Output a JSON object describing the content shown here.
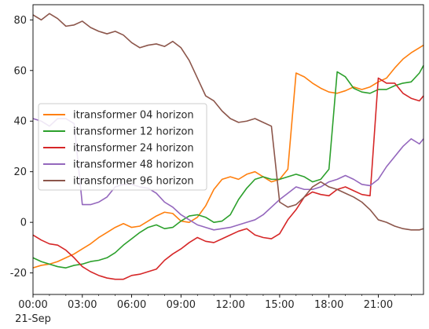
{
  "chart_data": {
    "type": "line",
    "title": "",
    "xlabel": "",
    "ylabel": "",
    "x_ticks": [
      "00:00",
      "03:00",
      "06:00",
      "09:00",
      "12:00",
      "15:00",
      "18:00",
      "21:00"
    ],
    "x_date_label": "21-Sep",
    "y_ticks": [
      -20,
      0,
      20,
      40,
      60,
      80
    ],
    "xlim": [
      0,
      23.75
    ],
    "ylim": [
      -28.5,
      86
    ],
    "grid": false,
    "legend_position": "center-left",
    "series": [
      {
        "name": "itransformer 04 horizon",
        "color": "#ff7f0e",
        "x": [
          0,
          0.5,
          1,
          1.5,
          2,
          2.5,
          3,
          3.5,
          4,
          4.5,
          5,
          5.5,
          6,
          6.5,
          7,
          7.5,
          8,
          8.5,
          9,
          9.5,
          10,
          10.5,
          11,
          11.5,
          12,
          12.5,
          13,
          13.5,
          14,
          14.5,
          15,
          15.5,
          16,
          16.5,
          17,
          17.5,
          18,
          18.5,
          19,
          19.5,
          20,
          20.5,
          21,
          21.5,
          22,
          22.5,
          23,
          23.5,
          23.75
        ],
        "y": [
          -18,
          -17,
          -16.5,
          -15.5,
          -14,
          -12.5,
          -10.5,
          -8.5,
          -6,
          -4,
          -2,
          -0.5,
          -2,
          -1.5,
          0.5,
          2.5,
          4,
          3.5,
          0.5,
          0,
          2,
          6.5,
          13,
          17,
          18,
          17,
          19,
          20,
          18,
          16,
          17,
          21,
          59,
          57.5,
          55,
          53,
          51.5,
          51,
          52,
          53.5,
          52.5,
          53.5,
          55.5,
          57,
          61,
          64.5,
          67,
          69,
          70
        ]
      },
      {
        "name": "itransformer 12 horizon",
        "color": "#2ca02c",
        "x": [
          0,
          0.5,
          1,
          1.5,
          2,
          2.5,
          3,
          3.5,
          4,
          4.5,
          5,
          5.5,
          6,
          6.5,
          7,
          7.5,
          8,
          8.5,
          9,
          9.5,
          10,
          10.5,
          11,
          11.5,
          12,
          12.5,
          13,
          13.5,
          14,
          14.5,
          15,
          15.5,
          16,
          16.5,
          17,
          17.5,
          18,
          18.5,
          19,
          19.5,
          20,
          20.5,
          21,
          21.5,
          22,
          22.5,
          23,
          23.5,
          23.75
        ],
        "y": [
          -14,
          -15.5,
          -16.5,
          -17.5,
          -18,
          -17,
          -16.5,
          -15.5,
          -15,
          -14,
          -12,
          -9,
          -6.5,
          -4,
          -2,
          -1,
          -2.5,
          -2,
          0.5,
          2.5,
          3,
          2,
          0,
          0.5,
          3,
          9,
          13.5,
          17,
          18,
          17,
          17,
          18,
          19,
          18,
          16,
          17,
          21,
          59.5,
          57.5,
          53,
          51.5,
          51,
          52.5,
          52.5,
          54,
          55,
          55.5,
          59,
          62
        ]
      },
      {
        "name": "itransformer 24 horizon",
        "color": "#d62728",
        "x": [
          0,
          0.5,
          1,
          1.5,
          2,
          2.5,
          3,
          3.5,
          4,
          4.5,
          5,
          5.5,
          6,
          6.5,
          7,
          7.5,
          8,
          8.5,
          9,
          9.5,
          10,
          10.5,
          11,
          11.5,
          12,
          12.5,
          13,
          13.5,
          14,
          14.5,
          15,
          15.5,
          16,
          16.5,
          17,
          17.5,
          18,
          18.5,
          19,
          19.5,
          20,
          20.5,
          21,
          21.5,
          22,
          22.5,
          23,
          23.5,
          23.75
        ],
        "y": [
          -5,
          -7,
          -8.5,
          -9,
          -11,
          -14,
          -17.5,
          -19.5,
          -21,
          -22,
          -22.5,
          -22.5,
          -21,
          -20.5,
          -19.5,
          -18.5,
          -15,
          -12.5,
          -10.5,
          -8,
          -6,
          -7.5,
          -8,
          -6.5,
          -5,
          -3.5,
          -2.5,
          -5,
          -6,
          -6.5,
          -4.5,
          1,
          5,
          10,
          12,
          11,
          10.5,
          13,
          14,
          12.5,
          11,
          10.5,
          57,
          55,
          55,
          51,
          49,
          48,
          50
        ]
      },
      {
        "name": "itransformer 48 horizon",
        "color": "#9467bd",
        "x": [
          0,
          0.5,
          1,
          1.5,
          2,
          2.5,
          3,
          3.5,
          4,
          4.5,
          5,
          5.5,
          6,
          6.5,
          7,
          7.5,
          8,
          8.5,
          9,
          9.5,
          10,
          10.5,
          11,
          11.5,
          12,
          12.5,
          13,
          13.5,
          14,
          14.5,
          15,
          15.5,
          16,
          16.5,
          17,
          17.5,
          18,
          18.5,
          19,
          19.5,
          20,
          20.5,
          21,
          21.5,
          22,
          22.5,
          23,
          23.5,
          23.75
        ],
        "y": [
          41,
          40,
          38,
          41,
          41,
          39,
          7,
          7,
          8,
          10,
          14,
          15,
          15,
          14,
          13.5,
          11.5,
          8,
          6,
          3,
          1,
          -1,
          -2,
          -3,
          -2.5,
          -2,
          -1,
          0,
          1,
          3,
          6,
          9,
          11.5,
          14,
          13,
          13,
          14,
          16,
          17,
          18.5,
          17,
          15,
          14.5,
          17,
          22,
          26,
          30,
          33,
          31,
          33
        ]
      },
      {
        "name": "itransformer 96 horizon",
        "color": "#8c564b",
        "x": [
          0,
          0.5,
          1,
          1.5,
          2,
          2.5,
          3,
          3.5,
          4,
          4.5,
          5,
          5.5,
          6,
          6.5,
          7,
          7.5,
          8,
          8.5,
          9,
          9.5,
          10,
          10.5,
          11,
          11.5,
          12,
          12.5,
          13,
          13.5,
          14,
          14.5,
          15,
          15.5,
          16,
          16.5,
          17,
          17.5,
          18,
          18.5,
          19,
          19.5,
          20,
          20.5,
          21,
          21.5,
          22,
          22.5,
          23,
          23.5,
          23.75
        ],
        "y": [
          82,
          80,
          82.5,
          80.5,
          77.5,
          78,
          79.5,
          77,
          75.5,
          74.5,
          75.5,
          74,
          71,
          69,
          70,
          70.5,
          69.5,
          71.5,
          69,
          64,
          57,
          50,
          48,
          44,
          41,
          39.5,
          40,
          41,
          39.5,
          38,
          8,
          6,
          7,
          10,
          14,
          16,
          14,
          13,
          11.5,
          10,
          8,
          5,
          1,
          0,
          -1.5,
          -2.5,
          -3,
          -3,
          -2.5
        ]
      }
    ]
  }
}
